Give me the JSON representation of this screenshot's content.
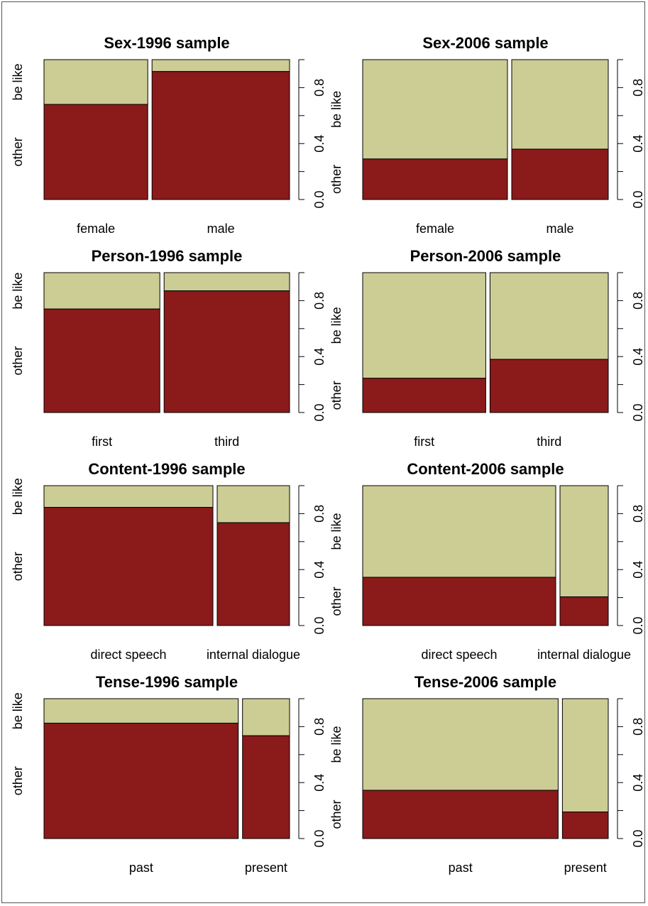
{
  "colors": {
    "other": "#8b1a1a",
    "be_like": "#cccc95",
    "stroke": "#000000"
  },
  "chart_data": [
    {
      "type": "mosaic",
      "title": "Sex-1996 sample",
      "categories": [
        "female",
        "male"
      ],
      "widths": [
        0.43,
        0.57
      ],
      "series": [
        {
          "name": "other",
          "values": [
            0.68,
            0.915
          ]
        },
        {
          "name": "be like",
          "values": [
            0.32,
            0.085
          ]
        }
      ],
      "y_levels": [
        "other",
        "be like"
      ],
      "y_ticks": [
        "0.0",
        "0.4",
        "0.8"
      ],
      "ylim": [
        0,
        1
      ]
    },
    {
      "type": "mosaic",
      "title": "Sex-2006 sample",
      "categories": [
        "female",
        "male"
      ],
      "widths": [
        0.6,
        0.4
      ],
      "series": [
        {
          "name": "other",
          "values": [
            0.29,
            0.36
          ]
        },
        {
          "name": "be like",
          "values": [
            0.71,
            0.64
          ]
        }
      ],
      "y_levels": [
        "other",
        "be like"
      ],
      "y_ticks": [
        "0.0",
        "0.4",
        "0.8"
      ],
      "ylim": [
        0,
        1
      ]
    },
    {
      "type": "mosaic",
      "title": "Person-1996 sample",
      "categories": [
        "first",
        "third"
      ],
      "widths": [
        0.48,
        0.52
      ],
      "series": [
        {
          "name": "other",
          "values": [
            0.74,
            0.87
          ]
        },
        {
          "name": "be like",
          "values": [
            0.26,
            0.13
          ]
        }
      ],
      "y_levels": [
        "other",
        "be like"
      ],
      "y_ticks": [
        "0.0",
        "0.4",
        "0.8"
      ],
      "ylim": [
        0,
        1
      ]
    },
    {
      "type": "mosaic",
      "title": "Person-2006 sample",
      "categories": [
        "first",
        "third"
      ],
      "widths": [
        0.51,
        0.49
      ],
      "series": [
        {
          "name": "other",
          "values": [
            0.245,
            0.38
          ]
        },
        {
          "name": "be like",
          "values": [
            0.755,
            0.62
          ]
        }
      ],
      "y_levels": [
        "other",
        "be like"
      ],
      "y_ticks": [
        "0.0",
        "0.4",
        "0.8"
      ],
      "ylim": [
        0,
        1
      ]
    },
    {
      "type": "mosaic",
      "title": "Content-1996 sample",
      "categories": [
        "direct speech",
        "internal dialogue"
      ],
      "widths": [
        0.7,
        0.3
      ],
      "series": [
        {
          "name": "other",
          "values": [
            0.845,
            0.735
          ]
        },
        {
          "name": "be like",
          "values": [
            0.155,
            0.265
          ]
        }
      ],
      "y_levels": [
        "other",
        "be like"
      ],
      "y_ticks": [
        "0.0",
        "0.4",
        "0.8"
      ],
      "ylim": [
        0,
        1
      ]
    },
    {
      "type": "mosaic",
      "title": "Content-2006 sample",
      "categories": [
        "direct speech",
        "internal dialogue"
      ],
      "widths": [
        0.8,
        0.2
      ],
      "series": [
        {
          "name": "other",
          "values": [
            0.345,
            0.205
          ]
        },
        {
          "name": "be like",
          "values": [
            0.655,
            0.795
          ]
        }
      ],
      "y_levels": [
        "other",
        "be like"
      ],
      "y_ticks": [
        "0.0",
        "0.4",
        "0.8"
      ],
      "ylim": [
        0,
        1
      ]
    },
    {
      "type": "mosaic",
      "title": "Tense-1996 sample",
      "categories": [
        "past",
        "present"
      ],
      "widths": [
        0.805,
        0.195
      ],
      "series": [
        {
          "name": "other",
          "values": [
            0.825,
            0.735
          ]
        },
        {
          "name": "be like",
          "values": [
            0.175,
            0.265
          ]
        }
      ],
      "y_levels": [
        "other",
        "be like"
      ],
      "y_ticks": [
        "0.0",
        "0.4",
        "0.8"
      ],
      "ylim": [
        0,
        1
      ]
    },
    {
      "type": "mosaic",
      "title": "Tense-2006 sample",
      "categories": [
        "past",
        "present"
      ],
      "widths": [
        0.81,
        0.19
      ],
      "series": [
        {
          "name": "other",
          "values": [
            0.345,
            0.19
          ]
        },
        {
          "name": "be like",
          "values": [
            0.655,
            0.81
          ]
        }
      ],
      "y_levels": [
        "other",
        "be like"
      ],
      "y_ticks": [
        "0.0",
        "0.4",
        "0.8"
      ],
      "ylim": [
        0,
        1
      ]
    }
  ]
}
